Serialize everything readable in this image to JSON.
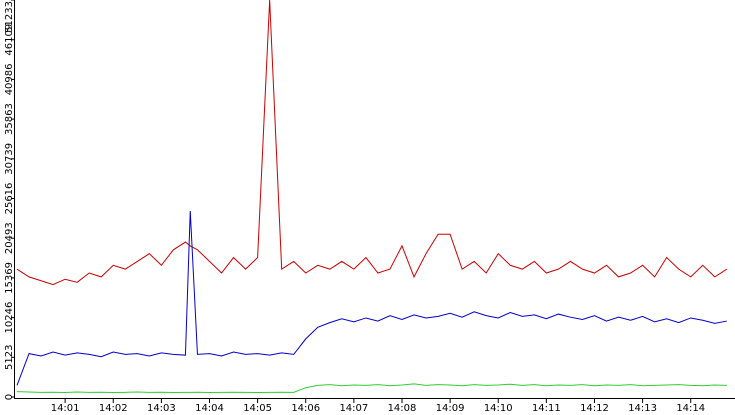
{
  "chart_data": {
    "type": "line",
    "x": [
      0,
      0.25,
      0.5,
      0.75,
      1,
      1.25,
      1.5,
      1.75,
      2,
      2.25,
      2.5,
      2.75,
      3,
      3.25,
      3.5,
      3.6,
      3.75,
      4,
      4.25,
      4.5,
      4.75,
      5,
      5.25,
      5.5,
      5.75,
      6,
      6.25,
      6.5,
      6.75,
      7,
      7.25,
      7.5,
      7.75,
      8,
      8.25,
      8.5,
      8.75,
      9,
      9.25,
      9.5,
      9.75,
      10,
      10.25,
      10.5,
      10.75,
      11,
      11.25,
      11.5,
      11.75,
      12,
      12.25,
      12.5,
      12.75,
      13,
      13.25,
      13.5,
      13.75,
      14,
      14.25,
      14.5,
      14.75
    ],
    "series": [
      {
        "color": "#cc0000",
        "values": [
          16500,
          15500,
          15000,
          14500,
          15200,
          14800,
          16000,
          15500,
          17000,
          16500,
          17500,
          18500,
          17000,
          19000,
          20000,
          19500,
          19000,
          17500,
          16000,
          18000,
          16500,
          18000,
          51233,
          16500,
          17500,
          16000,
          17000,
          16500,
          17500,
          16500,
          18000,
          16000,
          16500,
          19500,
          15500,
          18500,
          21000,
          21000,
          16500,
          17500,
          16000,
          18500,
          17000,
          16500,
          17500,
          16000,
          16500,
          17500,
          16500,
          16000,
          17000,
          15500,
          16000,
          17000,
          15500,
          18000,
          16500,
          15500,
          17000,
          15500,
          16500
        ]
      },
      {
        "color": "#0000cc",
        "values": [
          1500,
          5600,
          5300,
          5800,
          5400,
          5700,
          5500,
          5200,
          5800,
          5500,
          5600,
          5300,
          5700,
          5500,
          5400,
          24000,
          5500,
          5600,
          5300,
          5800,
          5500,
          5600,
          5400,
          5700,
          5500,
          7500,
          9000,
          9600,
          10100,
          9700,
          10200,
          9800,
          10500,
          10000,
          10600,
          10200,
          10400,
          10800,
          10300,
          11000,
          10500,
          10200,
          10900,
          10400,
          10600,
          10100,
          10700,
          10300,
          10000,
          10500,
          9800,
          10300,
          9900,
          10400,
          9700,
          10100,
          9600,
          10200,
          9900,
          9500,
          9800
        ]
      },
      {
        "color": "#33cc33",
        "values": [
          700,
          650,
          600,
          620,
          580,
          640,
          600,
          620,
          580,
          600,
          650,
          600,
          620,
          580,
          600,
          600,
          620,
          580,
          600,
          620,
          600,
          580,
          600,
          620,
          600,
          1200,
          1500,
          1600,
          1450,
          1550,
          1500,
          1600,
          1450,
          1550,
          1700,
          1500,
          1600,
          1550,
          1450,
          1600,
          1500,
          1550,
          1650,
          1500,
          1600,
          1450,
          1550,
          1500,
          1600,
          1450,
          1550,
          1500,
          1600,
          1450,
          1500,
          1550,
          1600,
          1500,
          1450,
          1550,
          1500
        ]
      }
    ],
    "xlim": [
      0,
      14.92
    ],
    "xticks": [
      {
        "value": 1,
        "label": "14:01"
      },
      {
        "value": 2,
        "label": "14:02"
      },
      {
        "value": 3,
        "label": "14:03"
      },
      {
        "value": 4,
        "label": "14:04"
      },
      {
        "value": 5,
        "label": "14:05"
      },
      {
        "value": 6,
        "label": "14:06"
      },
      {
        "value": 7,
        "label": "14:07"
      },
      {
        "value": 8,
        "label": "14:08"
      },
      {
        "value": 9,
        "label": "14:09"
      },
      {
        "value": 10,
        "label": "14:10"
      },
      {
        "value": 11,
        "label": "14:11"
      },
      {
        "value": 12,
        "label": "14:12"
      },
      {
        "value": 13,
        "label": "14:13"
      },
      {
        "value": 14,
        "label": "14:14"
      }
    ],
    "ylim": [
      0,
      51233
    ],
    "yticks": [
      0,
      5123,
      10246,
      15369,
      20493,
      25616,
      30739,
      35863,
      40986,
      46109,
      51233
    ]
  }
}
